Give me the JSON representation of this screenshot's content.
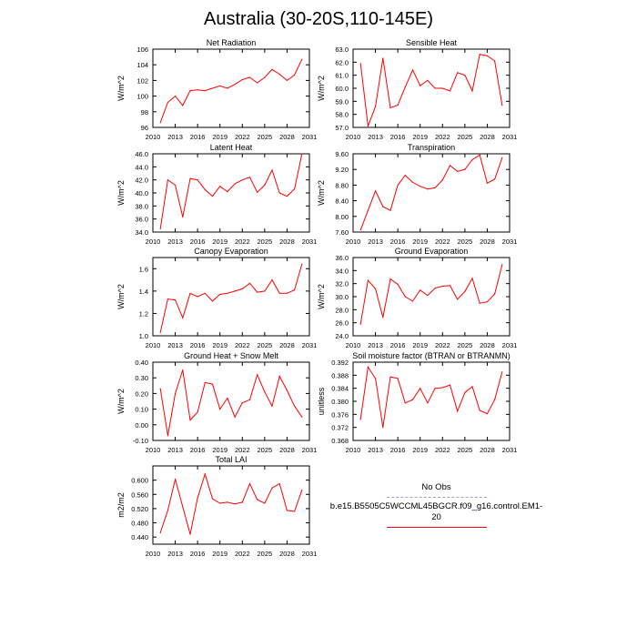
{
  "title": "Australia (30-20S,110-145E)",
  "colors": {
    "series": "#ff0000",
    "no_obs": "#a0a0c8",
    "axis": "#000000"
  },
  "legend": [
    {
      "label": "No Obs",
      "style": "dashed"
    },
    {
      "label": "b.e15.B5505C5WCCML45BGCR.f09_g16.control.EM1-20",
      "style": "solid"
    }
  ],
  "chart_data": [
    {
      "type": "line",
      "title": "Net Radiation",
      "ylabel": "W/m^2",
      "xlim": [
        2010,
        2031
      ],
      "ylim": [
        96,
        106
      ],
      "x_ticks": [
        2010,
        2013,
        2016,
        2019,
        2022,
        2025,
        2028,
        2031
      ],
      "y_ticks": [
        "96",
        "98",
        "100",
        "102",
        "104",
        "106"
      ],
      "x": [
        2011,
        2012,
        2013,
        2014,
        2015,
        2016,
        2017,
        2018,
        2019,
        2020,
        2021,
        2022,
        2023,
        2024,
        2025,
        2026,
        2027,
        2028,
        2029,
        2030
      ],
      "values": [
        96.6,
        99.2,
        100.0,
        98.8,
        100.7,
        100.8,
        100.7,
        101.0,
        101.3,
        101.0,
        101.5,
        102.1,
        102.4,
        101.7,
        102.4,
        103.4,
        102.8,
        102.0,
        102.7,
        104.7
      ]
    },
    {
      "type": "line",
      "title": "Sensible Heat",
      "ylabel": "W/m^2",
      "xlim": [
        2010,
        2031
      ],
      "ylim": [
        57,
        63
      ],
      "x_ticks": [
        2010,
        2013,
        2016,
        2019,
        2022,
        2025,
        2028,
        2031
      ],
      "y_ticks": [
        "57.0",
        "58.0",
        "59.0",
        "60.0",
        "61.0",
        "62.0",
        "63.0"
      ],
      "x": [
        2011,
        2012,
        2013,
        2014,
        2015,
        2016,
        2017,
        2018,
        2019,
        2020,
        2021,
        2022,
        2023,
        2024,
        2025,
        2026,
        2027,
        2028,
        2029,
        2030
      ],
      "values": [
        61.9,
        57.1,
        58.6,
        62.3,
        58.5,
        58.7,
        60.1,
        61.4,
        60.2,
        60.6,
        60.0,
        60.0,
        59.8,
        61.2,
        61.0,
        59.8,
        62.6,
        62.5,
        62.1,
        58.7
      ]
    },
    {
      "type": "line",
      "title": "Latent Heat",
      "ylabel": "W/m^2",
      "xlim": [
        2010,
        2031
      ],
      "ylim": [
        34,
        46
      ],
      "x_ticks": [
        2010,
        2013,
        2016,
        2019,
        2022,
        2025,
        2028,
        2031
      ],
      "y_ticks": [
        "34.0",
        "36.0",
        "38.0",
        "40.0",
        "42.0",
        "44.0",
        "46.0"
      ],
      "x": [
        2011,
        2012,
        2013,
        2014,
        2015,
        2016,
        2017,
        2018,
        2019,
        2020,
        2021,
        2022,
        2023,
        2024,
        2025,
        2026,
        2027,
        2028,
        2029,
        2030
      ],
      "values": [
        34.5,
        42.0,
        41.2,
        36.3,
        42.2,
        42.0,
        40.5,
        39.5,
        41.0,
        40.2,
        41.4,
        42.0,
        42.4,
        40.1,
        41.2,
        43.5,
        40.0,
        39.5,
        40.6,
        46.0
      ]
    },
    {
      "type": "line",
      "title": "Transpiration",
      "ylabel": "W/m^2",
      "xlim": [
        2010,
        2031
      ],
      "ylim": [
        7.6,
        9.6
      ],
      "x_ticks": [
        2010,
        2013,
        2016,
        2019,
        2022,
        2025,
        2028,
        2031
      ],
      "y_ticks": [
        "7.60",
        "8.00",
        "8.40",
        "8.80",
        "9.20",
        "9.60"
      ],
      "x": [
        2011,
        2012,
        2013,
        2014,
        2015,
        2016,
        2017,
        2018,
        2019,
        2020,
        2021,
        2022,
        2023,
        2024,
        2025,
        2026,
        2027,
        2028,
        2029,
        2030
      ],
      "values": [
        7.65,
        8.15,
        8.65,
        8.25,
        8.15,
        8.8,
        9.05,
        8.87,
        8.77,
        8.7,
        8.73,
        8.93,
        9.3,
        9.15,
        9.2,
        9.45,
        9.57,
        8.85,
        8.95,
        9.5
      ]
    },
    {
      "type": "line",
      "title": "Canopy Evaporation",
      "ylabel": "W/m^2",
      "xlim": [
        2010,
        2031
      ],
      "ylim": [
        1.0,
        1.7
      ],
      "x_ticks": [
        2010,
        2013,
        2016,
        2019,
        2022,
        2025,
        2028,
        2031
      ],
      "y_ticks": [
        "1.0",
        "1.2",
        "1.4",
        "1.6"
      ],
      "x": [
        2011,
        2012,
        2013,
        2014,
        2015,
        2016,
        2017,
        2018,
        2019,
        2020,
        2021,
        2022,
        2023,
        2024,
        2025,
        2026,
        2027,
        2028,
        2029,
        2030
      ],
      "values": [
        1.03,
        1.33,
        1.32,
        1.16,
        1.38,
        1.35,
        1.38,
        1.31,
        1.37,
        1.38,
        1.4,
        1.42,
        1.47,
        1.39,
        1.4,
        1.5,
        1.38,
        1.38,
        1.41,
        1.64
      ]
    },
    {
      "type": "line",
      "title": "Ground Evaporation",
      "ylabel": "W/m^2",
      "xlim": [
        2010,
        2031
      ],
      "ylim": [
        24,
        36
      ],
      "x_ticks": [
        2010,
        2013,
        2016,
        2019,
        2022,
        2025,
        2028,
        2031
      ],
      "y_ticks": [
        "24.0",
        "26.0",
        "28.0",
        "30.0",
        "32.0",
        "34.0",
        "36.0"
      ],
      "x": [
        2011,
        2012,
        2013,
        2014,
        2015,
        2016,
        2017,
        2018,
        2019,
        2020,
        2021,
        2022,
        2023,
        2024,
        2025,
        2026,
        2027,
        2028,
        2029,
        2030
      ],
      "values": [
        25.8,
        32.5,
        31.2,
        26.8,
        32.7,
        31.9,
        30.0,
        29.3,
        31.0,
        30.2,
        31.3,
        31.6,
        31.7,
        29.6,
        30.8,
        32.8,
        29.0,
        29.2,
        30.4,
        34.9
      ]
    },
    {
      "type": "line",
      "title": "Ground Heat + Snow Melt",
      "ylabel": "W/m^2",
      "xlim": [
        2010,
        2031
      ],
      "ylim": [
        -0.1,
        0.4
      ],
      "x_ticks": [
        2010,
        2013,
        2016,
        2019,
        2022,
        2025,
        2028,
        2031
      ],
      "y_ticks": [
        "-0.10",
        "0.00",
        "0.10",
        "0.20",
        "0.30",
        "0.40"
      ],
      "x": [
        2011,
        2012,
        2013,
        2014,
        2015,
        2016,
        2017,
        2018,
        2019,
        2020,
        2021,
        2022,
        2023,
        2024,
        2025,
        2026,
        2027,
        2028,
        2029,
        2030
      ],
      "values": [
        0.23,
        -0.07,
        0.2,
        0.35,
        0.03,
        0.08,
        0.27,
        0.26,
        0.1,
        0.17,
        0.05,
        0.14,
        0.16,
        0.32,
        0.21,
        0.12,
        0.31,
        0.22,
        0.12,
        0.05
      ]
    },
    {
      "type": "line",
      "title": "Soil moisture factor (BTRAN or BTRANMN)",
      "ylabel": "unitless",
      "xlim": [
        2010,
        2031
      ],
      "ylim": [
        0.368,
        0.392
      ],
      "x_ticks": [
        2010,
        2013,
        2016,
        2019,
        2022,
        2025,
        2028,
        2031
      ],
      "y_ticks": [
        "0.368",
        "0.372",
        "0.376",
        "0.380",
        "0.384",
        "0.388",
        "0.392"
      ],
      "x": [
        2011,
        2012,
        2013,
        2014,
        2015,
        2016,
        2017,
        2018,
        2019,
        2020,
        2021,
        2022,
        2023,
        2024,
        2025,
        2026,
        2027,
        2028,
        2029,
        2030
      ],
      "values": [
        0.3745,
        0.3905,
        0.387,
        0.372,
        0.3875,
        0.387,
        0.3795,
        0.3805,
        0.384,
        0.3795,
        0.384,
        0.3842,
        0.385,
        0.377,
        0.3827,
        0.3845,
        0.3772,
        0.3762,
        0.3805,
        0.389
      ]
    },
    {
      "type": "line",
      "title": "Total LAI",
      "ylabel": "m2/m2",
      "xlim": [
        2010,
        2031
      ],
      "ylim": [
        0.42,
        0.64
      ],
      "x_ticks": [
        2010,
        2013,
        2016,
        2019,
        2022,
        2025,
        2028,
        2031
      ],
      "y_ticks": [
        "0.440",
        "0.480",
        "0.520",
        "0.560",
        "0.600"
      ],
      "x": [
        2011,
        2012,
        2013,
        2014,
        2015,
        2016,
        2017,
        2018,
        2019,
        2020,
        2021,
        2022,
        2023,
        2024,
        2025,
        2026,
        2027,
        2028,
        2029,
        2030
      ],
      "values": [
        0.452,
        0.515,
        0.603,
        0.525,
        0.448,
        0.55,
        0.617,
        0.548,
        0.535,
        0.538,
        0.533,
        0.538,
        0.59,
        0.545,
        0.535,
        0.578,
        0.59,
        0.515,
        0.512,
        0.572
      ]
    }
  ]
}
